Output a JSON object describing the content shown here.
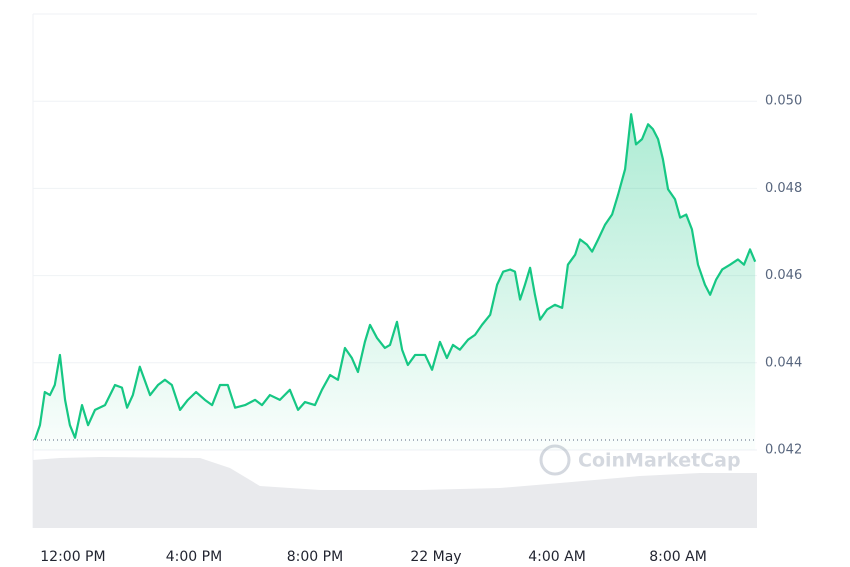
{
  "chart_data": {
    "type": "line",
    "watermark": "CoinMarketCap",
    "color": "#16c784",
    "xlim": [
      10.68,
      34.61
    ],
    "xticks": [
      {
        "value": 12,
        "label": "12:00 PM"
      },
      {
        "value": 16,
        "label": "4:00 PM"
      },
      {
        "value": 20,
        "label": "8:00 PM"
      },
      {
        "value": 24,
        "label": "22 May"
      },
      {
        "value": 28,
        "label": "4:00 AM"
      },
      {
        "value": 32,
        "label": "8:00 AM"
      }
    ],
    "ylim": [
      0.042,
      0.052
    ],
    "yticks": [
      0.042,
      0.044,
      0.046,
      0.048,
      {
        "value": 0.05,
        "label": "0.050"
      }
    ],
    "grid": true,
    "x": [
      10.74,
      10.91,
      11.07,
      11.24,
      11.4,
      11.57,
      11.74,
      11.9,
      12.07,
      12.3,
      12.5,
      12.73,
      13.06,
      13.39,
      13.62,
      13.79,
      13.98,
      14.21,
      14.55,
      14.81,
      15.04,
      15.27,
      15.54,
      15.8,
      16.07,
      16.36,
      16.6,
      16.86,
      17.12,
      17.36,
      17.69,
      18.02,
      18.25,
      18.51,
      18.84,
      19.17,
      19.44,
      19.67,
      20.0,
      20.23,
      20.5,
      20.76,
      20.99,
      21.22,
      21.42,
      21.65,
      21.82,
      22.05,
      22.31,
      22.48,
      22.71,
      22.88,
      23.07,
      23.31,
      23.64,
      23.87,
      24.13,
      24.36,
      24.56,
      24.79,
      25.06,
      25.29,
      25.52,
      25.79,
      26.02,
      26.22,
      26.45,
      26.61,
      26.78,
      26.94,
      27.11,
      27.27,
      27.44,
      27.67,
      27.93,
      28.17,
      28.36,
      28.6,
      28.76,
      28.99,
      29.16,
      29.36,
      29.59,
      29.82,
      30.02,
      30.25,
      30.45,
      30.61,
      30.81,
      31.01,
      31.17,
      31.34,
      31.5,
      31.67,
      31.9,
      32.07,
      32.27,
      32.46,
      32.66,
      32.89,
      33.06,
      33.26,
      33.46,
      33.72,
      33.98,
      34.18,
      34.38,
      34.55
    ],
    "values": [
      0.04223,
      0.04257,
      0.04333,
      0.04326,
      0.04349,
      0.04418,
      0.04315,
      0.04257,
      0.04228,
      0.04303,
      0.04257,
      0.04292,
      0.04303,
      0.04349,
      0.04343,
      0.04297,
      0.04326,
      0.04391,
      0.04326,
      0.04349,
      0.04361,
      0.04349,
      0.04292,
      0.04315,
      0.04333,
      0.04315,
      0.04303,
      0.04349,
      0.04349,
      0.04297,
      0.04303,
      0.04315,
      0.04303,
      0.04326,
      0.04315,
      0.04338,
      0.04292,
      0.0431,
      0.04303,
      0.04338,
      0.04372,
      0.04361,
      0.04434,
      0.04411,
      0.04379,
      0.04448,
      0.04487,
      0.04457,
      0.04434,
      0.04441,
      0.04494,
      0.0443,
      0.04395,
      0.04418,
      0.04418,
      0.04384,
      0.04448,
      0.04411,
      0.04441,
      0.0443,
      0.04453,
      0.04464,
      0.04487,
      0.0451,
      0.04579,
      0.04609,
      0.04614,
      0.04609,
      0.04545,
      0.04579,
      0.04618,
      0.04556,
      0.04499,
      0.04522,
      0.04533,
      0.04526,
      0.04625,
      0.04648,
      0.04683,
      0.04671,
      0.04655,
      0.04683,
      0.04717,
      0.0474,
      0.04786,
      0.04844,
      0.0497,
      0.04901,
      0.04913,
      0.04947,
      0.04936,
      0.04913,
      0.04867,
      0.04798,
      0.04775,
      0.04733,
      0.0474,
      0.04706,
      0.04625,
      0.04579,
      0.04556,
      0.04591,
      0.04614,
      0.04625,
      0.04637,
      0.04625,
      0.0466,
      0.04632
    ],
    "volume": {
      "color": "#e9eaed",
      "ylim": [
        0,
        100
      ],
      "x": [
        10.68,
        11.57,
        12.89,
        16.2,
        17.19,
        18.18,
        20.17,
        23.47,
        26.12,
        28.1,
        30.74,
        32.73,
        34.61
      ],
      "values": [
        68,
        70,
        71,
        70,
        60,
        42,
        38,
        38,
        40,
        45,
        52,
        55,
        55
      ]
    }
  }
}
